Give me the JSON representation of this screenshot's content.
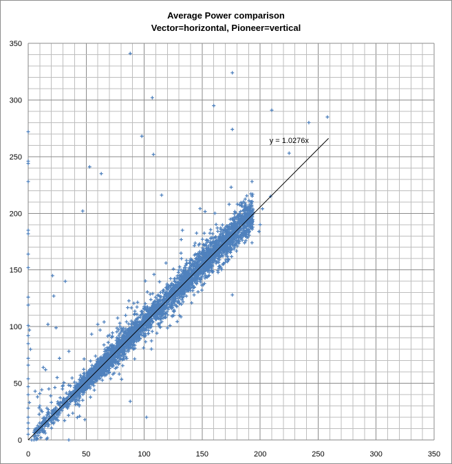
{
  "chart_data": {
    "type": "scatter",
    "title_lines": [
      "Average Power comparison",
      "Vector=horizontal, Pioneer=vertical"
    ],
    "xlabel": "",
    "ylabel": "",
    "xlim": [
      0,
      350
    ],
    "ylim": [
      0,
      350
    ],
    "x_ticks": [
      0,
      50,
      100,
      150,
      200,
      250,
      300,
      350
    ],
    "y_ticks": [
      0,
      50,
      100,
      150,
      200,
      250,
      300,
      350
    ],
    "minor_grid_step": 10,
    "grid": true,
    "legend": "none",
    "series": [
      {
        "color": "#4f81bd",
        "marker": "plus",
        "trend_model": "y = a*x",
        "trend": {
          "slope": 1.0276,
          "x_range": [
            0,
            259
          ]
        },
        "points": [
          [
            88,
            341
          ],
          [
            176,
            324
          ],
          [
            107,
            302
          ],
          [
            210,
            291
          ],
          [
            160,
            295
          ],
          [
            258,
            285
          ],
          [
            242,
            280
          ],
          [
            176,
            274
          ],
          [
            0,
            272
          ],
          [
            98,
            268
          ],
          [
            108,
            252
          ],
          [
            225,
            253
          ],
          [
            0,
            246
          ],
          [
            0,
            244
          ],
          [
            53,
            241
          ],
          [
            63,
            235
          ],
          [
            0,
            228
          ],
          [
            193,
            228
          ],
          [
            115,
            216
          ],
          [
            209,
            215
          ],
          [
            175,
            223
          ],
          [
            47,
            202
          ],
          [
            0,
            185
          ],
          [
            0,
            182
          ],
          [
            0,
            152
          ],
          [
            0,
            164
          ],
          [
            0,
            126
          ],
          [
            0,
            119
          ],
          [
            0,
            101
          ],
          [
            21,
            145
          ],
          [
            22,
            127
          ],
          [
            32,
            140
          ],
          [
            176,
            128
          ],
          [
            88,
            34
          ],
          [
            35,
            0
          ],
          [
            3,
            0
          ],
          [
            11,
            2
          ],
          [
            0,
            20
          ],
          [
            0,
            15
          ],
          [
            0,
            54
          ],
          [
            0,
            72
          ],
          [
            0,
            85
          ],
          [
            0,
            92
          ],
          [
            1,
            97
          ],
          [
            2,
            80
          ],
          [
            0,
            66
          ],
          [
            0,
            5
          ],
          [
            0,
            10
          ],
          [
            0,
            28
          ],
          [
            0,
            40
          ],
          [
            0,
            47
          ],
          [
            1,
            33
          ],
          [
            5,
            0
          ],
          [
            14,
            8
          ],
          [
            17,
            12
          ],
          [
            102,
            20
          ],
          [
            60,
            102
          ],
          [
            62,
            97
          ],
          [
            17,
            102
          ],
          [
            24,
            99
          ],
          [
            13,
            64
          ],
          [
            15,
            62
          ],
          [
            6,
            43
          ],
          [
            8,
            38
          ],
          [
            10,
            30
          ],
          [
            12,
            25
          ],
          [
            20,
            20
          ],
          [
            25,
            55
          ],
          [
            30,
            48
          ],
          [
            27,
            72
          ],
          [
            133,
            185
          ],
          [
            147,
            172
          ],
          [
            141,
            159
          ],
          [
            154,
            174
          ],
          [
            159,
            182
          ],
          [
            199,
            184
          ],
          [
            187,
            182
          ],
          [
            202,
            204
          ],
          [
            200,
            190
          ],
          [
            193,
            174
          ],
          [
            161,
            200
          ],
          [
            118,
            112
          ],
          [
            123,
            120
          ],
          [
            127,
            132
          ],
          [
            134,
            147
          ],
          [
            119,
            123
          ],
          [
            111,
            119
          ],
          [
            106,
            110
          ],
          [
            84,
            110
          ],
          [
            79,
            103
          ],
          [
            69,
            86
          ],
          [
            53,
            62
          ],
          [
            58,
            74
          ],
          [
            45,
            57
          ],
          [
            40,
            51
          ],
          [
            44,
            30
          ],
          [
            47,
            35
          ],
          [
            57,
            44
          ],
          [
            73,
            58
          ],
          [
            76,
            83
          ],
          [
            92,
            88
          ],
          [
            101,
            92
          ],
          [
            129,
            125
          ],
          [
            137,
            132
          ],
          [
            150,
            144
          ],
          [
            143,
            128
          ],
          [
            165,
            159
          ],
          [
            172,
            166
          ],
          [
            185,
            188
          ],
          [
            190,
            195
          ],
          [
            182,
            193
          ],
          [
            178,
            196
          ],
          [
            170,
            186
          ],
          [
            166,
            187
          ],
          [
            152,
            138
          ],
          [
            156,
            148
          ],
          [
            141,
            140
          ],
          [
            138,
            145
          ],
          [
            130,
            150
          ],
          [
            126,
            142
          ]
        ],
        "band": {
          "count": 3600,
          "x_range": [
            5,
            200
          ],
          "spread": 4.5,
          "outlier_count": 260,
          "outlier_spread": 15
        }
      }
    ],
    "annotations": [
      {
        "text": "y = 1.0276x",
        "x": 225,
        "y": 262
      }
    ]
  }
}
